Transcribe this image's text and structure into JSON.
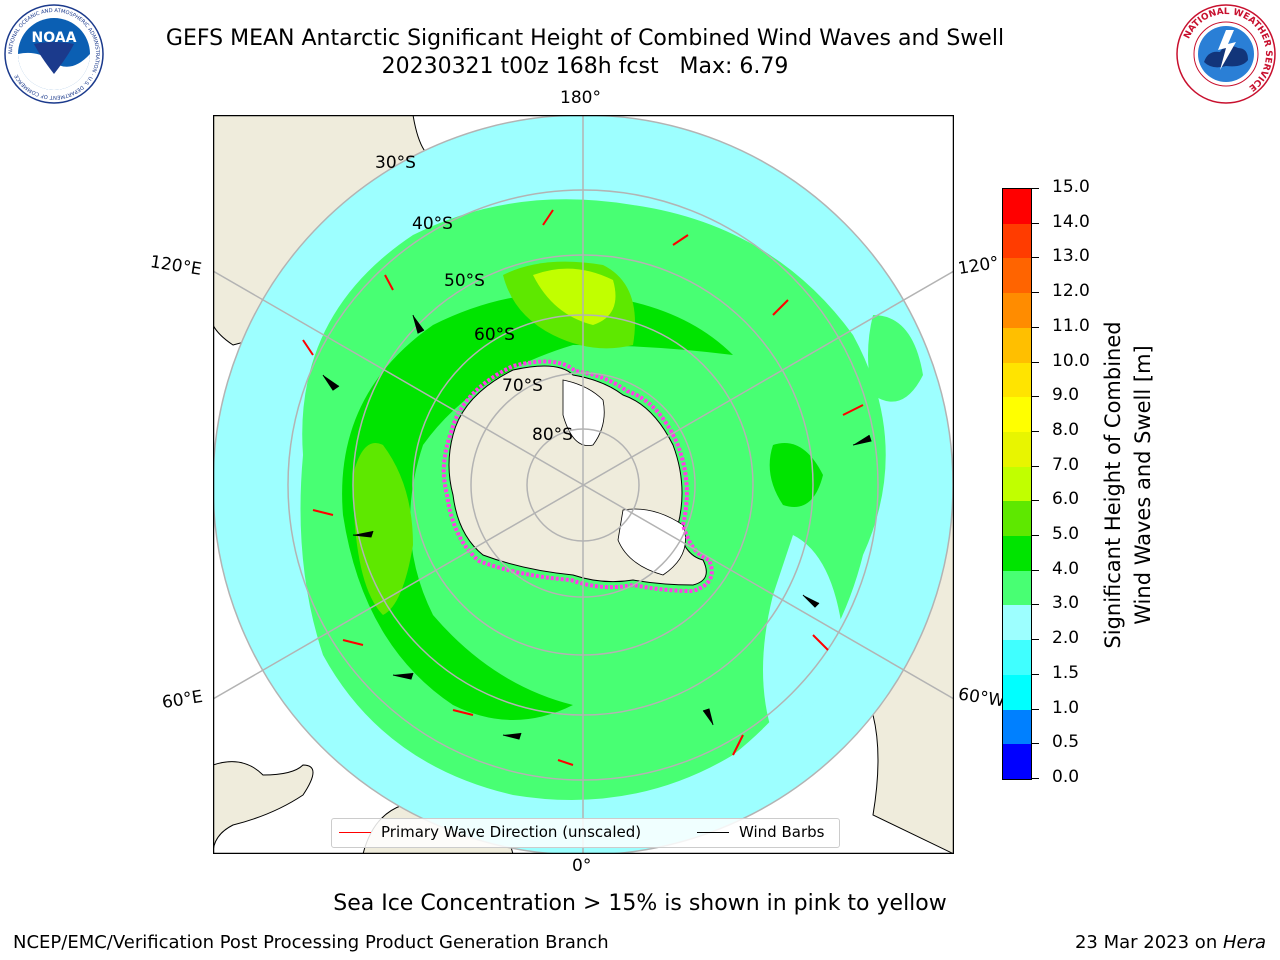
{
  "header": {
    "title_line1": "GEFS MEAN Antarctic Significant Height of Combined Wind Waves and Swell",
    "title_line2": "20230321 t00z 168h fcst   Max: 6.79"
  },
  "logos": {
    "noaa": {
      "text": "NOAA",
      "ring_text": "NATIONAL OCEANIC AND ATMOSPHERIC ADMINISTRATION · U.S. DEPARTMENT OF COMMERCE",
      "icon": "noaa-logo-icon"
    },
    "nws": {
      "ring_text": "NATIONAL WEATHER SERVICE",
      "icon": "nws-logo-icon"
    }
  },
  "map": {
    "projection": "south-polar-stereographic",
    "lon_labels": {
      "top": "180°",
      "bottom": "0°",
      "upper_left": "120°E",
      "lower_left": "60°E",
      "upper_right": "120°",
      "lower_right": "60°W"
    },
    "lat_labels": [
      "30°S",
      "40°S",
      "50°S",
      "60°S",
      "70°S",
      "80°S"
    ],
    "colors": {
      "land": "#efecdc",
      "ice_outline": "#ff3de8",
      "grid": "#b3b3b3"
    }
  },
  "legend": {
    "primary_wave": {
      "label": "Primary Wave Direction (unscaled)",
      "color": "#ff0000"
    },
    "wind_barbs": {
      "label": "Wind Barbs",
      "color": "#000000"
    }
  },
  "colorbar": {
    "label_line1": "Significant Height of Combined",
    "label_line2": "Wind Waves and Swell [m]",
    "ticks": [
      "0.0",
      "0.5",
      "1.0",
      "1.5",
      "2.0",
      "3.0",
      "4.0",
      "5.0",
      "6.0",
      "7.0",
      "8.0",
      "9.0",
      "10.0",
      "11.0",
      "12.0",
      "13.0",
      "14.0",
      "15.0"
    ],
    "colors": [
      "#0000ff",
      "#0080ff",
      "#00ffff",
      "#40ffff",
      "#9dffff",
      "#48ff73",
      "#00e400",
      "#5ee800",
      "#c1ff00",
      "#e8f500",
      "#ffff00",
      "#ffe400",
      "#ffbf00",
      "#ff8c00",
      "#ff6400",
      "#ff3c00",
      "#ff0000"
    ]
  },
  "notes": {
    "sea_ice": "Sea Ice Concentration > 15% is shown in pink to yellow"
  },
  "footer": {
    "left": "NCEP/EMC/Verification Post Processing Product Generation Branch",
    "right_prefix": "23 Mar 2023 on ",
    "right_machine": "Hera"
  }
}
